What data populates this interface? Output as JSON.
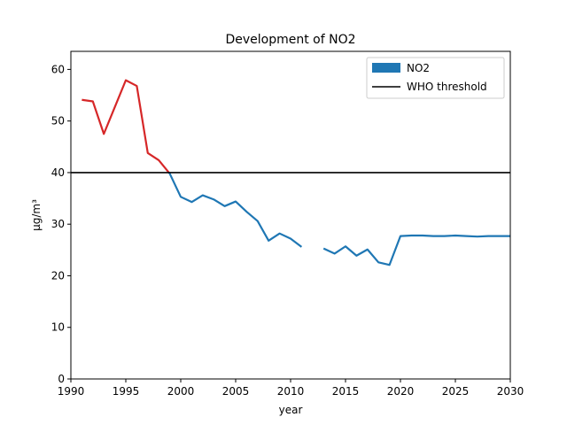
{
  "chart_data": {
    "type": "line",
    "title": "Development of NO2",
    "xlabel": "year",
    "ylabel": "µg/m³",
    "xlim": [
      1990,
      2030
    ],
    "ylim": [
      0,
      63.5
    ],
    "xticks": [
      "1990",
      "1995",
      "2000",
      "2005",
      "2010",
      "2015",
      "2020",
      "2025",
      "2030"
    ],
    "yticks": [
      "0",
      "10",
      "20",
      "30",
      "40",
      "50",
      "60"
    ],
    "grid": false,
    "legend": {
      "placement": "top-right",
      "entries": [
        "NO2",
        "WHO threshold"
      ]
    },
    "threshold": {
      "name": "WHO threshold",
      "value": 40,
      "color": "#000000"
    },
    "series": [
      {
        "name": "NO2",
        "color": "#1f77b4",
        "above_threshold_color": "#d62728",
        "segments": [
          {
            "x": [
              1991,
              1992,
              1993,
              1994,
              1995,
              1996,
              1997,
              1998,
              1999,
              2000,
              2001,
              2002,
              2003,
              2004,
              2005,
              2006,
              2007,
              2008,
              2009,
              2010,
              2011
            ],
            "y": [
              54.1,
              53.8,
              47.5,
              52.7,
              57.9,
              56.8,
              43.8,
              42.4,
              39.8,
              35.3,
              34.3,
              35.6,
              34.8,
              33.5,
              34.4,
              32.4,
              30.6,
              26.8,
              28.2,
              27.2,
              25.6
            ]
          },
          {
            "x": [
              2013,
              2014,
              2015,
              2016,
              2017,
              2018,
              2019,
              2020,
              2021,
              2022,
              2023,
              2024,
              2025,
              2026,
              2027,
              2028,
              2029,
              2030
            ],
            "y": [
              25.3,
              24.3,
              25.7,
              23.9,
              25.1,
              22.6,
              22.1,
              27.7,
              27.8,
              27.8,
              27.7,
              27.7,
              27.8,
              27.7,
              27.6,
              27.7,
              27.7,
              27.7
            ]
          }
        ]
      }
    ]
  }
}
